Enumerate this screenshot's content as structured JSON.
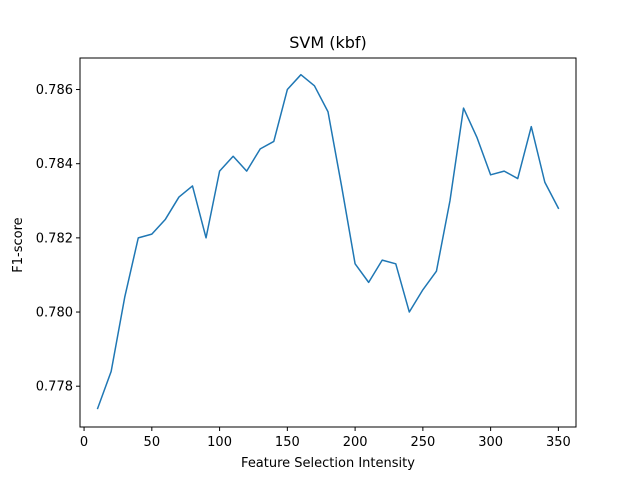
{
  "chart_data": {
    "type": "line",
    "title": "SVM (kbf)",
    "xlabel": "Feature Selection Intensity",
    "ylabel": "F1-score",
    "xlim": [
      -3,
      363
    ],
    "ylim": [
      0.7769,
      0.78685
    ],
    "xticks": [
      0,
      50,
      100,
      150,
      200,
      250,
      300,
      350
    ],
    "yticks": [
      0.778,
      0.78,
      0.782,
      0.784,
      0.786
    ],
    "xtick_labels": [
      "0",
      "50",
      "100",
      "150",
      "200",
      "250",
      "300",
      "350"
    ],
    "ytick_labels": [
      "0.778",
      "0.780",
      "0.782",
      "0.784",
      "0.786"
    ],
    "grid": false,
    "line_color": "#1f77b4",
    "series": [
      {
        "x": [
          10,
          20,
          30,
          40,
          50,
          60,
          70,
          80,
          90,
          100,
          110,
          120,
          130,
          140,
          150,
          160,
          170,
          180,
          190,
          200,
          210,
          220,
          230,
          240,
          250,
          260,
          270,
          280,
          290,
          300,
          310,
          320,
          330,
          340,
          350
        ],
        "values": [
          0.7774,
          0.7784,
          0.7804,
          0.782,
          0.7821,
          0.7825,
          0.7831,
          0.7834,
          0.782,
          0.7838,
          0.7842,
          0.7838,
          0.7844,
          0.7846,
          0.786,
          0.7864,
          0.7861,
          0.7854,
          0.7834,
          0.7813,
          0.7808,
          0.7814,
          0.7813,
          0.78,
          0.7806,
          0.7811,
          0.783,
          0.7855,
          0.7847,
          0.7837,
          0.7838,
          0.7836,
          0.785,
          0.7835,
          0.7828
        ]
      }
    ]
  }
}
